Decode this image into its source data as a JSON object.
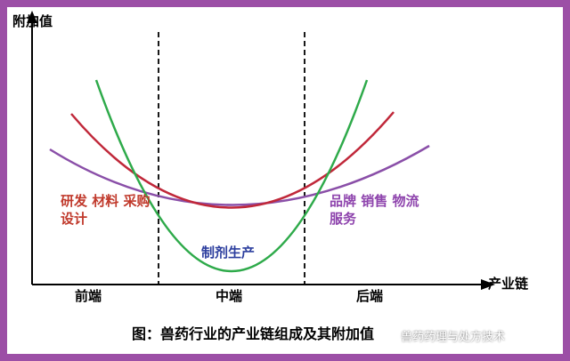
{
  "axes": {
    "y_label": "附加值",
    "x_label": "产业链"
  },
  "zones": {
    "front": "前端",
    "middle": "中端",
    "back": "后端"
  },
  "notes": {
    "left": "研发 材料 采购 设计",
    "right": "品牌 销售 物流 服务",
    "middle": "制剂生产"
  },
  "caption": "图：兽药行业的产业链组成及其附加值",
  "watermark": "兽药药理与处方技术",
  "colors": {
    "green": "#2eaa4a",
    "red": "#c0283a",
    "purple": "#8a4fa8",
    "background": "#9c4fa6"
  }
}
